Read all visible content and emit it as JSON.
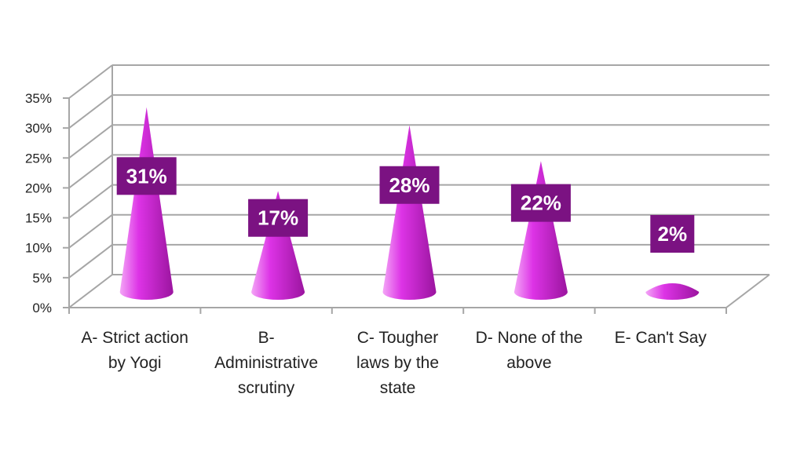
{
  "chart_data": {
    "type": "bar",
    "categories": [
      "A- Strict action by Yogi",
      "B- Administrative scrutiny",
      "C- Tougher laws by the state",
      "D- None of the above",
      "E- Can't Say"
    ],
    "values": [
      31,
      17,
      28,
      22,
      2
    ],
    "data_labels": [
      "31%",
      "17%",
      "28%",
      "22%",
      "2%"
    ],
    "ylim": [
      0,
      35
    ],
    "yticks": [
      "0%",
      "5%",
      "10%",
      "15%",
      "20%",
      "25%",
      "30%",
      "35%"
    ],
    "grid": true,
    "legend": "none",
    "colors": {
      "cone_light": "#f3a6f6",
      "cone_mid": "#dd33e6",
      "cone_dark": "#9b159f",
      "label_bg": "#7b1282",
      "grid": "#a6a6a6"
    }
  }
}
